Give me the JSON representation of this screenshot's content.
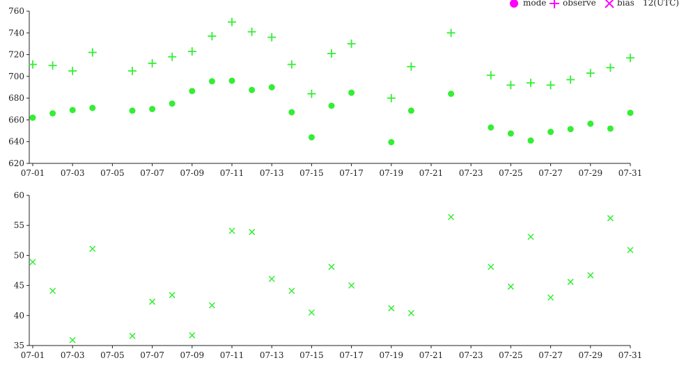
{
  "legend": {
    "items": [
      {
        "label": "mode",
        "marker": "filled-circle",
        "color": "#ff00ff"
      },
      {
        "label": "observe",
        "marker": "plus",
        "color": "#ff00ff"
      },
      {
        "label": "bias",
        "marker": "cross",
        "color": "#ff00ff"
      }
    ],
    "time_label": "12(UTC)"
  },
  "colors": {
    "data": "#33ee33",
    "legend": "#ff00ff",
    "axis": "#222222"
  },
  "chart_data": [
    {
      "type": "scatter",
      "x_ticks": [
        "07-01",
        "07-03",
        "07-05",
        "07-07",
        "07-09",
        "07-11",
        "07-13",
        "07-15",
        "07-17",
        "07-19",
        "07-21",
        "07-23",
        "07-25",
        "07-27",
        "07-29",
        "07-31"
      ],
      "xlim": [
        "07-01",
        "07-31"
      ],
      "ylim": [
        620,
        760
      ],
      "y_ticks": [
        620,
        640,
        660,
        680,
        700,
        720,
        740,
        760
      ],
      "series": [
        {
          "name": "mode",
          "marker": "filled-circle",
          "points": [
            [
              "07-01",
              662
            ],
            [
              "07-02",
              666
            ],
            [
              "07-03",
              669
            ],
            [
              "07-04",
              671
            ],
            [
              "07-06",
              668.5
            ],
            [
              "07-07",
              670
            ],
            [
              "07-08",
              675
            ],
            [
              "07-09",
              686.5
            ],
            [
              "07-10",
              695.5
            ],
            [
              "07-11",
              696
            ],
            [
              "07-12",
              687.5
            ],
            [
              "07-13",
              690
            ],
            [
              "07-14",
              667
            ],
            [
              "07-15",
              644
            ],
            [
              "07-16",
              673
            ],
            [
              "07-17",
              685
            ],
            [
              "07-19",
              639.5
            ],
            [
              "07-20",
              668.5
            ],
            [
              "07-22",
              684
            ],
            [
              "07-24",
              653
            ],
            [
              "07-25",
              647.5
            ],
            [
              "07-26",
              641
            ],
            [
              "07-27",
              649
            ],
            [
              "07-28",
              651.5
            ],
            [
              "07-29",
              656.5
            ],
            [
              "07-30",
              652
            ],
            [
              "07-31",
              666.5
            ]
          ]
        },
        {
          "name": "observe",
          "marker": "plus",
          "points": [
            [
              "07-01",
              711
            ],
            [
              "07-02",
              710
            ],
            [
              "07-03",
              705
            ],
            [
              "07-04",
              722
            ],
            [
              "07-06",
              705
            ],
            [
              "07-07",
              712
            ],
            [
              "07-08",
              718
            ],
            [
              "07-09",
              723
            ],
            [
              "07-10",
              737
            ],
            [
              "07-11",
              750
            ],
            [
              "07-12",
              741
            ],
            [
              "07-13",
              736
            ],
            [
              "07-14",
              711
            ],
            [
              "07-15",
              684
            ],
            [
              "07-16",
              721
            ],
            [
              "07-17",
              730
            ],
            [
              "07-19",
              680
            ],
            [
              "07-20",
              709
            ],
            [
              "07-22",
              740
            ],
            [
              "07-24",
              701
            ],
            [
              "07-25",
              692
            ],
            [
              "07-26",
              694
            ],
            [
              "07-27",
              692
            ],
            [
              "07-28",
              697
            ],
            [
              "07-29",
              703
            ],
            [
              "07-30",
              708
            ],
            [
              "07-31",
              717
            ]
          ]
        }
      ]
    },
    {
      "type": "scatter",
      "x_ticks": [
        "07-01",
        "07-03",
        "07-05",
        "07-07",
        "07-09",
        "07-11",
        "07-13",
        "07-15",
        "07-17",
        "07-19",
        "07-21",
        "07-23",
        "07-25",
        "07-27",
        "07-29",
        "07-31"
      ],
      "xlim": [
        "07-01",
        "07-31"
      ],
      "ylim": [
        35,
        60
      ],
      "y_ticks": [
        35,
        40,
        45,
        50,
        55,
        60
      ],
      "series": [
        {
          "name": "bias",
          "marker": "cross",
          "points": [
            [
              "07-01",
              48.9
            ],
            [
              "07-02",
              44.1
            ],
            [
              "07-03",
              35.9
            ],
            [
              "07-04",
              51.1
            ],
            [
              "07-06",
              36.6
            ],
            [
              "07-07",
              42.3
            ],
            [
              "07-08",
              43.4
            ],
            [
              "07-09",
              36.7
            ],
            [
              "07-10",
              41.7
            ],
            [
              "07-11",
              54.1
            ],
            [
              "07-12",
              53.9
            ],
            [
              "07-13",
              46.1
            ],
            [
              "07-14",
              44.1
            ],
            [
              "07-15",
              40.5
            ],
            [
              "07-16",
              48.1
            ],
            [
              "07-17",
              45.0
            ],
            [
              "07-19",
              41.2
            ],
            [
              "07-20",
              40.4
            ],
            [
              "07-22",
              56.4
            ],
            [
              "07-24",
              48.1
            ],
            [
              "07-25",
              44.8
            ],
            [
              "07-26",
              53.1
            ],
            [
              "07-27",
              43.0
            ],
            [
              "07-28",
              45.6
            ],
            [
              "07-29",
              46.7
            ],
            [
              "07-30",
              56.2
            ],
            [
              "07-31",
              50.9
            ]
          ]
        }
      ]
    }
  ]
}
